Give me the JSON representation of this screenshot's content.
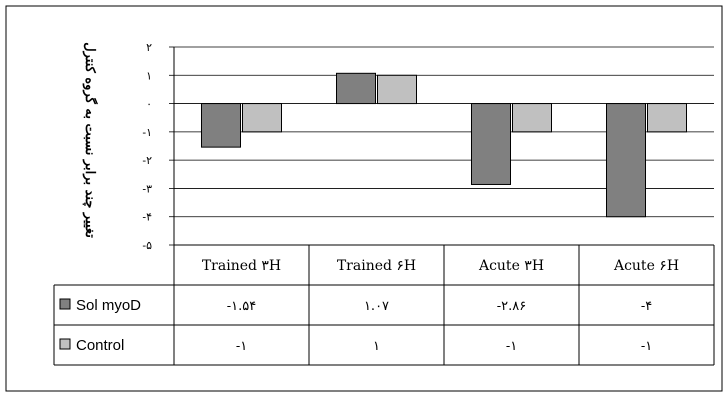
{
  "chart_data": {
    "type": "bar",
    "ylabel": "تغییر چند برابر نسبت به گروه کنترل",
    "ylim": [
      -5,
      2
    ],
    "grid": true,
    "y_ticks": [
      {
        "value": 2,
        "label": "۲"
      },
      {
        "value": 1,
        "label": "۱"
      },
      {
        "value": 0,
        "label": "۰"
      },
      {
        "value": -1,
        "label": "-۱"
      },
      {
        "value": -2,
        "label": "-۲"
      },
      {
        "value": -3,
        "label": "-۳"
      },
      {
        "value": -4,
        "label": "-۴"
      },
      {
        "value": -5,
        "label": "-۵"
      }
    ],
    "categories": [
      "Trained ۳H",
      "Trained ۶H",
      "Acute ۳H",
      "Acute ۶H"
    ],
    "series": [
      {
        "name": "Sol myoD",
        "color": "#808080",
        "values": [
          -1.54,
          1.07,
          -2.86,
          -4
        ],
        "value_labels": [
          "-۱.۵۴",
          "۱.۰۷",
          "-۲.۸۶",
          "-۴"
        ]
      },
      {
        "name": "Control",
        "color": "#c0c0c0",
        "values": [
          -1,
          1,
          -1,
          -1
        ],
        "value_labels": [
          "-۱",
          "۱",
          "-۱",
          "-۱"
        ]
      }
    ],
    "legend": "data-table-left"
  }
}
